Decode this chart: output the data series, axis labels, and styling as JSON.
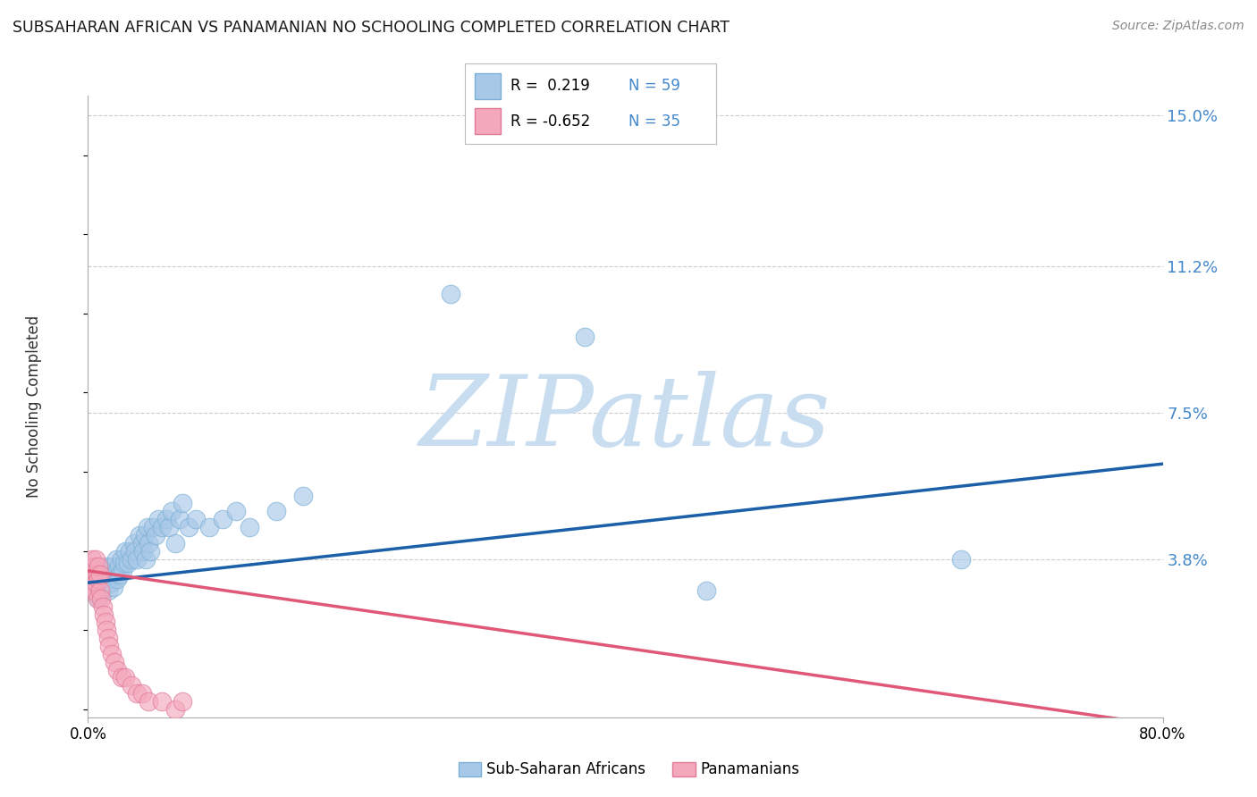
{
  "title": "SUBSAHARAN AFRICAN VS PANAMANIAN NO SCHOOLING COMPLETED CORRELATION CHART",
  "source": "Source: ZipAtlas.com",
  "ylabel": "No Schooling Completed",
  "legend_label1": "Sub-Saharan Africans",
  "legend_label2": "Panamanians",
  "R1": " 0.219",
  "N1": "59",
  "R2": "-0.652",
  "N2": "35",
  "xmin": 0.0,
  "xmax": 0.8,
  "ymin": -0.002,
  "ymax": 0.155,
  "yticks": [
    0.038,
    0.075,
    0.112,
    0.15
  ],
  "ytick_labels": [
    "3.8%",
    "7.5%",
    "11.2%",
    "15.0%"
  ],
  "blue_color": "#a8c8e8",
  "blue_edge": "#7aafd4",
  "blue_line_color": "#1a5fa8",
  "pink_color": "#f4a8bc",
  "pink_edge": "#e07898",
  "pink_line_color": "#e05878",
  "watermark_color": "#c8ddf0",
  "grid_color": "#cccccc",
  "title_color": "#1a1a1a",
  "source_color": "#888888",
  "tick_color_y": "#4488cc",
  "bg": "#ffffff",
  "blue_x": [
    0.004,
    0.006,
    0.008,
    0.009,
    0.01,
    0.011,
    0.012,
    0.013,
    0.014,
    0.015,
    0.016,
    0.017,
    0.018,
    0.019,
    0.02,
    0.021,
    0.022,
    0.023,
    0.024,
    0.025,
    0.026,
    0.027,
    0.028,
    0.03,
    0.031,
    0.032,
    0.034,
    0.035,
    0.036,
    0.038,
    0.04,
    0.041,
    0.042,
    0.043,
    0.044,
    0.045,
    0.046,
    0.048,
    0.05,
    0.052,
    0.055,
    0.058,
    0.06,
    0.062,
    0.065,
    0.068,
    0.07,
    0.075,
    0.08,
    0.09,
    0.1,
    0.11,
    0.12,
    0.14,
    0.16,
    0.27,
    0.37,
    0.46,
    0.65
  ],
  "blue_y": [
    0.03,
    0.032,
    0.028,
    0.033,
    0.035,
    0.03,
    0.034,
    0.032,
    0.036,
    0.03,
    0.033,
    0.032,
    0.036,
    0.031,
    0.034,
    0.038,
    0.033,
    0.036,
    0.034,
    0.038,
    0.035,
    0.037,
    0.04,
    0.037,
    0.04,
    0.038,
    0.042,
    0.04,
    0.038,
    0.044,
    0.042,
    0.04,
    0.044,
    0.038,
    0.046,
    0.042,
    0.04,
    0.046,
    0.044,
    0.048,
    0.046,
    0.048,
    0.046,
    0.05,
    0.042,
    0.048,
    0.052,
    0.046,
    0.048,
    0.046,
    0.048,
    0.05,
    0.046,
    0.05,
    0.054,
    0.105,
    0.094,
    0.03,
    0.038
  ],
  "pink_x": [
    0.001,
    0.002,
    0.003,
    0.003,
    0.004,
    0.004,
    0.005,
    0.005,
    0.006,
    0.006,
    0.007,
    0.007,
    0.008,
    0.008,
    0.009,
    0.009,
    0.01,
    0.011,
    0.012,
    0.013,
    0.014,
    0.015,
    0.016,
    0.018,
    0.02,
    0.022,
    0.025,
    0.028,
    0.032,
    0.036,
    0.04,
    0.045,
    0.055,
    0.065,
    0.07
  ],
  "pink_y": [
    0.034,
    0.036,
    0.032,
    0.038,
    0.03,
    0.034,
    0.036,
    0.03,
    0.032,
    0.038,
    0.034,
    0.028,
    0.033,
    0.036,
    0.03,
    0.034,
    0.028,
    0.026,
    0.024,
    0.022,
    0.02,
    0.018,
    0.016,
    0.014,
    0.012,
    0.01,
    0.008,
    0.008,
    0.006,
    0.004,
    0.004,
    0.002,
    0.002,
    0.0,
    0.002
  ],
  "blue_trend_x0": 0.0,
  "blue_trend_y0": 0.032,
  "blue_trend_x1": 0.8,
  "blue_trend_y1": 0.062,
  "pink_trend_x0": 0.0,
  "pink_trend_y0": 0.035,
  "pink_trend_x1": 0.8,
  "pink_trend_y1": -0.004
}
